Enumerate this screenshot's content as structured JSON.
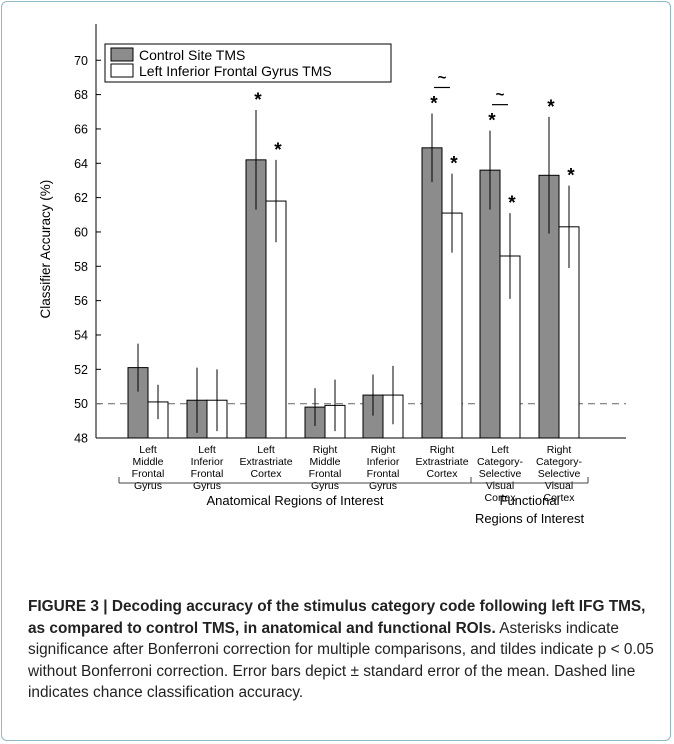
{
  "chart_data": {
    "type": "bar",
    "ylabel": "Classifier Accuracy (%)",
    "ylim": [
      48,
      72
    ],
    "yticks": [
      48,
      50,
      52,
      54,
      56,
      58,
      60,
      62,
      64,
      66,
      68,
      70
    ],
    "chance_level": 50,
    "categories": [
      [
        "Left",
        "Middle",
        "Frontal",
        "Gyrus"
      ],
      [
        "Left",
        "Inferior",
        "Frontal",
        "Gyrus"
      ],
      [
        "Left",
        "Extrastriate",
        "Cortex"
      ],
      [
        "Right",
        "Middle",
        "Frontal",
        "Gyrus"
      ],
      [
        "Right",
        "Inferior",
        "Frontal",
        "Gyrus"
      ],
      [
        "Right",
        "Extrastriate",
        "Cortex"
      ],
      [
        "Left",
        "Category-",
        "Selective",
        "Visual",
        "Cortex"
      ],
      [
        "Right",
        "Category-",
        "Selective",
        "Visual",
        "Cortex"
      ]
    ],
    "series": [
      {
        "name": "Control Site TMS",
        "color": "#8c8c8c",
        "values": [
          52.1,
          50.2,
          64.2,
          49.8,
          50.5,
          64.9,
          63.6,
          63.3
        ],
        "errors": [
          1.4,
          1.9,
          2.9,
          1.1,
          1.2,
          2.0,
          2.3,
          3.4
        ],
        "significant": [
          false,
          false,
          true,
          false,
          false,
          true,
          true,
          true
        ]
      },
      {
        "name": "Left Inferior Frontal Gyrus TMS",
        "color": "#ffffff",
        "values": [
          50.1,
          50.2,
          61.8,
          49.9,
          50.5,
          61.1,
          58.6,
          60.3
        ],
        "errors": [
          1.0,
          1.8,
          2.4,
          1.5,
          1.7,
          2.3,
          2.5,
          2.4
        ],
        "significant": [
          false,
          false,
          true,
          false,
          false,
          true,
          true,
          true
        ]
      }
    ],
    "tilde_marks": [
      5,
      6
    ],
    "significance_symbol": "*",
    "tilde_symbol": "~",
    "groups": [
      {
        "label": [
          "Anatomical Regions of Interest"
        ],
        "from": 0,
        "to": 5
      },
      {
        "label": [
          "Functional",
          "Regions of Interest"
        ],
        "from": 6,
        "to": 7
      }
    ]
  },
  "caption": {
    "lead": "FIGURE 3 | Decoding accuracy of the stimulus category code following left IFG TMS, as compared to control TMS, in anatomical and functional ROIs.",
    "note": "Asterisks indicate significance after Bonferroni correction for multiple comparisons, and tildes indicate p < 0.05 without Bonferroni correction. Error bars depict ± standard error of the mean. Dashed line indicates chance classification accuracy."
  }
}
